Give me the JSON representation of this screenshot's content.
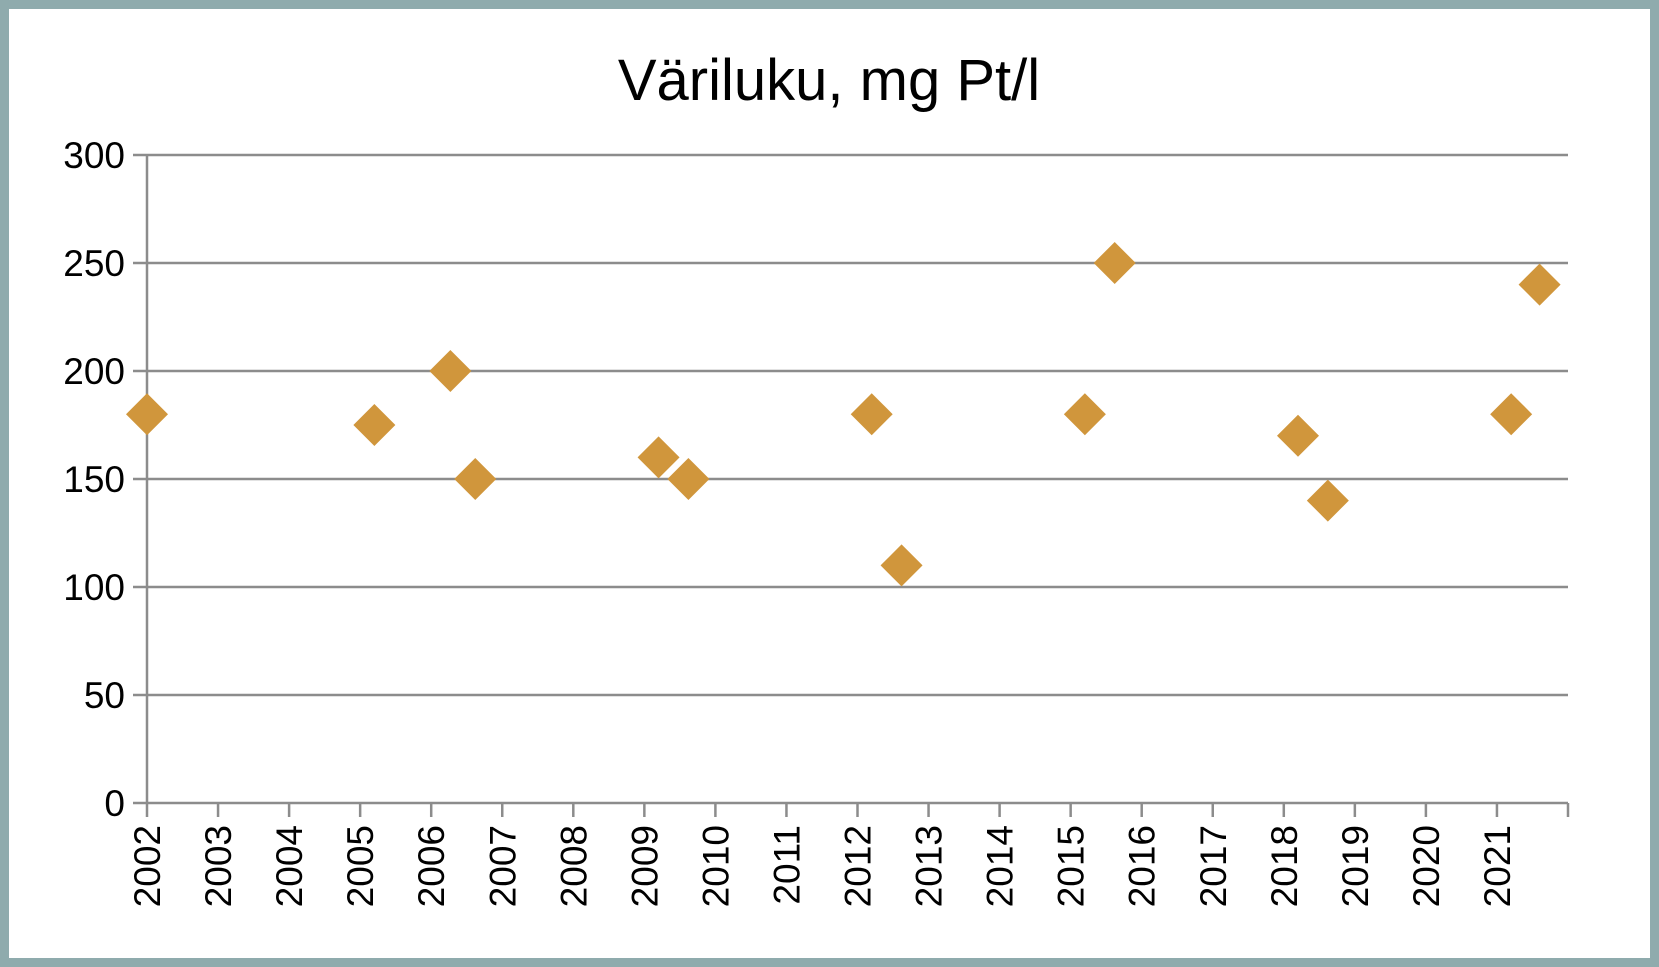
{
  "chart_data": {
    "type": "scatter",
    "title": "Väriluku, mg Pt/l",
    "xlabel": "",
    "ylabel": "",
    "ylim": [
      0,
      300
    ],
    "yticks": [
      0,
      50,
      100,
      150,
      200,
      250,
      300
    ],
    "xlim": [
      2002,
      2022
    ],
    "xtick_labels": [
      "2002",
      "2003",
      "2004",
      "2005",
      "2006",
      "2007",
      "2008",
      "2009",
      "2010",
      "2011",
      "2012",
      "2013",
      "2014",
      "2015",
      "2016",
      "2017",
      "2018",
      "2019",
      "2020",
      "2021"
    ],
    "grid": true,
    "legend": "none",
    "marker": "diamond",
    "marker_color": "#d0963c",
    "gridline_color": "#8c8c8c",
    "frame_color": "#8fabad",
    "points": [
      {
        "x": 2002.0,
        "y": 180
      },
      {
        "x": 2005.2,
        "y": 175
      },
      {
        "x": 2006.27,
        "y": 200
      },
      {
        "x": 2006.62,
        "y": 150
      },
      {
        "x": 2009.2,
        "y": 160
      },
      {
        "x": 2009.62,
        "y": 150
      },
      {
        "x": 2012.2,
        "y": 180
      },
      {
        "x": 2012.62,
        "y": 110
      },
      {
        "x": 2015.2,
        "y": 180
      },
      {
        "x": 2015.62,
        "y": 250
      },
      {
        "x": 2018.2,
        "y": 170
      },
      {
        "x": 2018.62,
        "y": 140
      },
      {
        "x": 2021.2,
        "y": 180
      },
      {
        "x": 2021.6,
        "y": 240
      }
    ]
  }
}
